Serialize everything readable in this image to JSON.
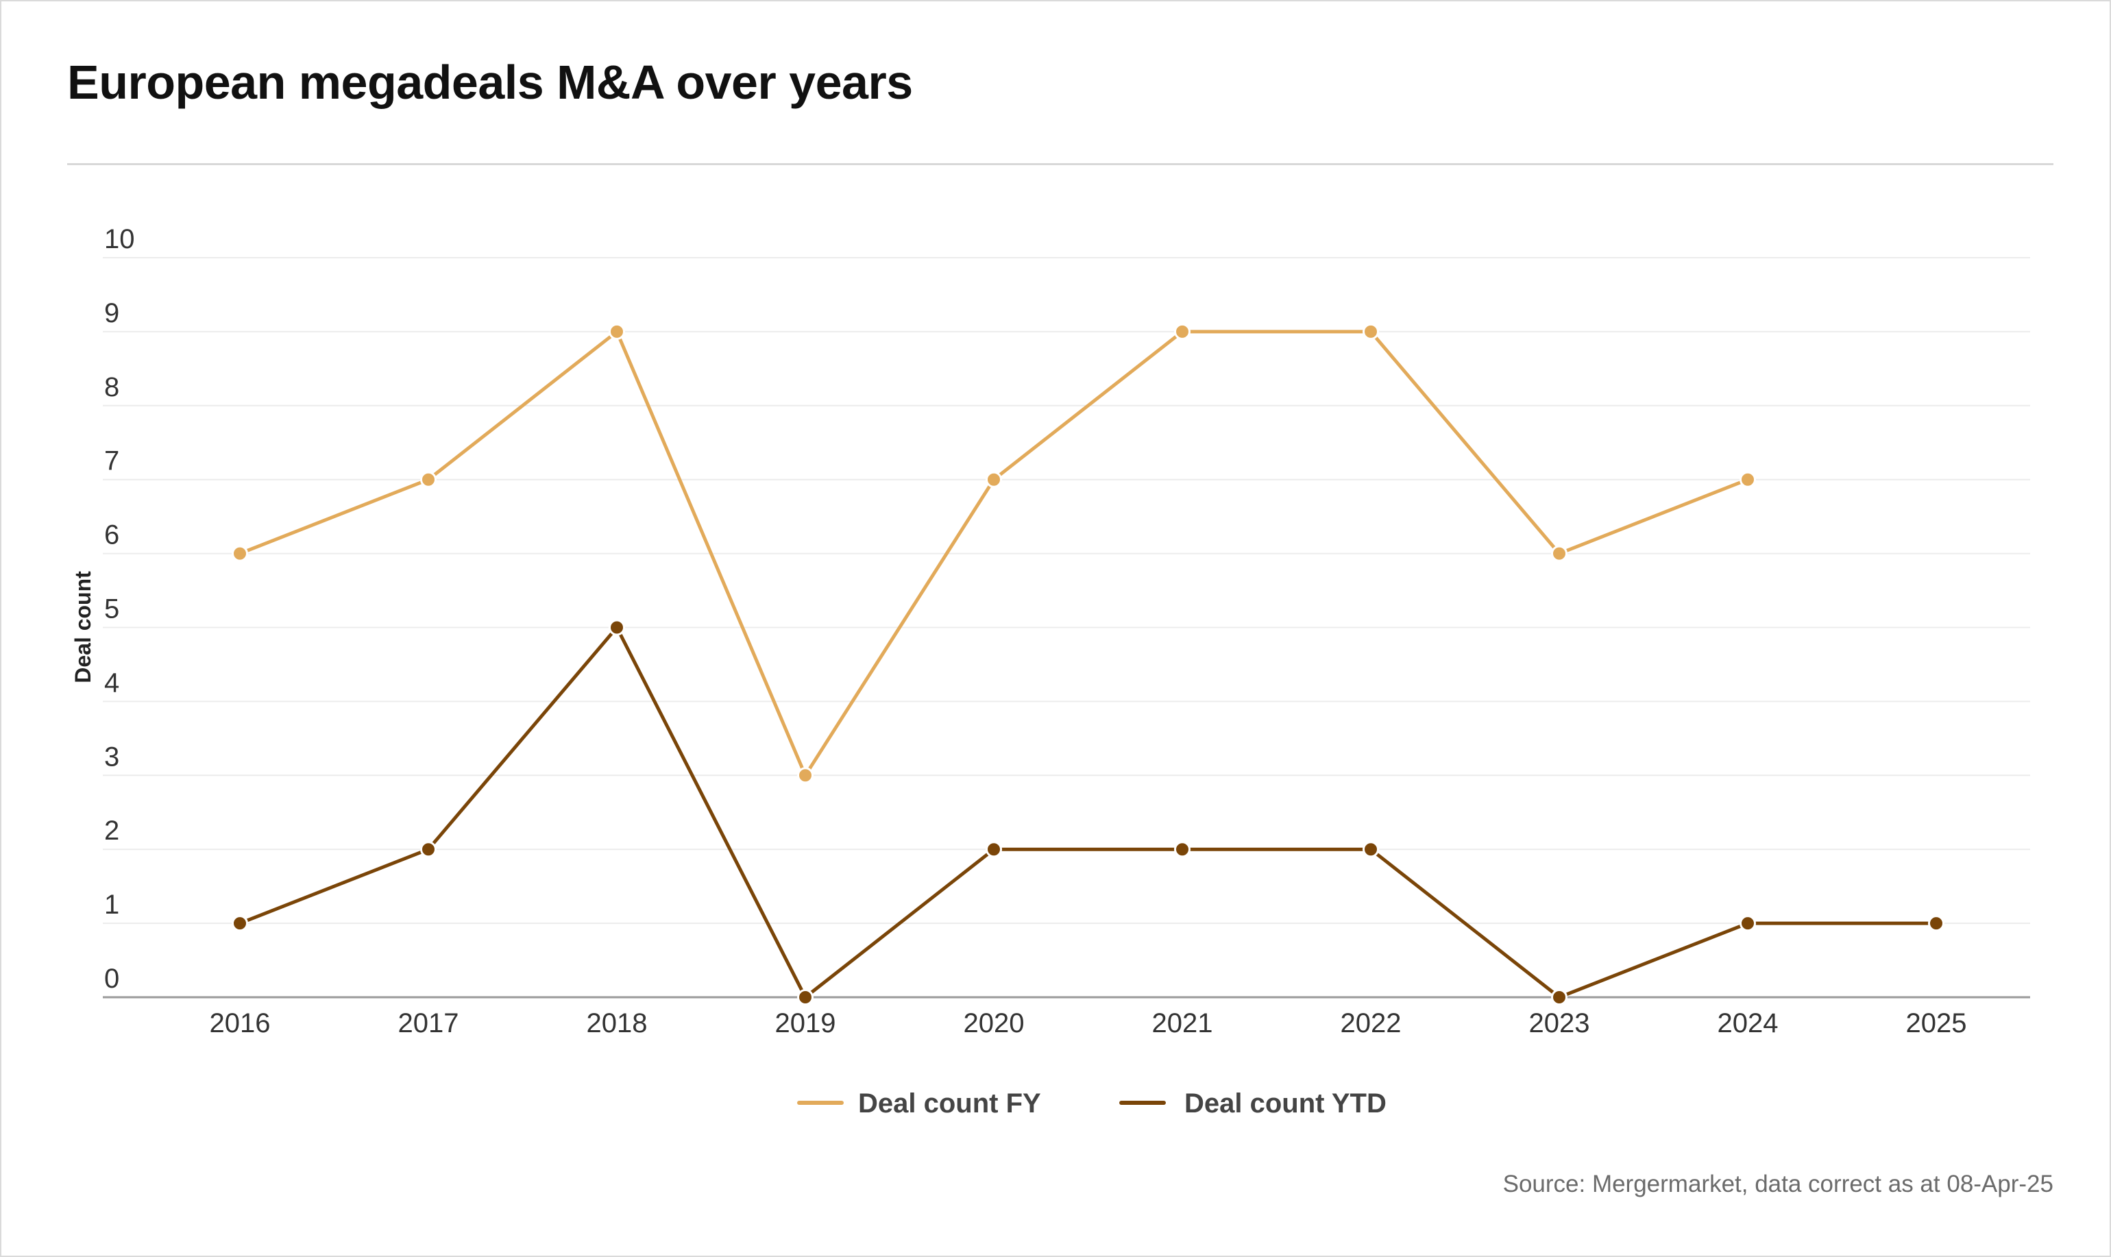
{
  "title": "European megadeals M&A over years",
  "source": "Source: Mergermarket, data correct as at 08-Apr-25",
  "chart_data": {
    "type": "line",
    "title": "European megadeals M&A over years",
    "xlabel": "",
    "ylabel": "Deal count",
    "ylim": [
      0,
      10
    ],
    "yticks": [
      "0",
      "1",
      "2",
      "3",
      "4",
      "5",
      "6",
      "7",
      "8",
      "9",
      "10"
    ],
    "categories": [
      "2016",
      "2017",
      "2018",
      "2019",
      "2020",
      "2021",
      "2022",
      "2023",
      "2024",
      "2025"
    ],
    "grid": true,
    "legend_position": "bottom-center",
    "series": [
      {
        "name": "Deal count FY",
        "color": "#e2aa5a",
        "values": [
          6,
          7,
          9,
          3,
          7,
          9,
          9,
          6,
          7,
          null
        ]
      },
      {
        "name": "Deal count YTD",
        "color": "#7a4508",
        "values": [
          1,
          2,
          5,
          0,
          2,
          2,
          2,
          0,
          1,
          1
        ]
      }
    ]
  },
  "colors": {
    "gridline": "#ececec",
    "axis": "#9a9a9a",
    "tick_text": "#333333",
    "title_text": "#111111",
    "source_text": "#6b6b6b"
  }
}
